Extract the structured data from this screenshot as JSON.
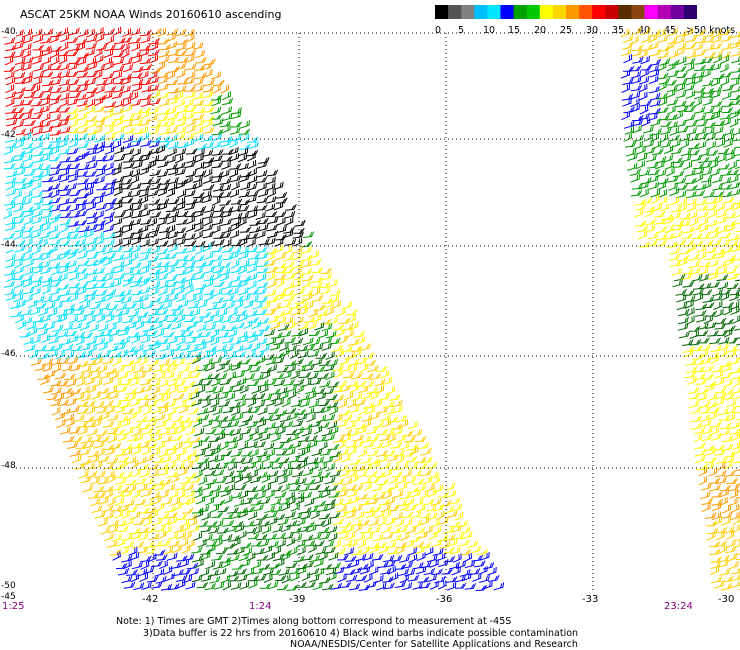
{
  "title": "ASCAT 25KM NOAA Winds 20160610 ascending",
  "colorbar": {
    "colors": [
      "#000000",
      "#555555",
      "#808080",
      "#00bfff",
      "#00e5ff",
      "#0000ff",
      "#00a000",
      "#00c800",
      "#ffff00",
      "#ffd700",
      "#ff9900",
      "#ff5500",
      "#ff0000",
      "#c80000",
      "#5a2d00",
      "#8b4513",
      "#ff00ff",
      "#b400b4",
      "#7000a0",
      "#300070"
    ],
    "labels": [
      "0",
      "5",
      "10",
      "15",
      "20",
      "25",
      "30",
      "35",
      "40",
      "45",
      ">50 knots"
    ]
  },
  "map": {
    "lat_labels": [
      "-40",
      "-42",
      "-44",
      "-46",
      "-48",
      "-50"
    ],
    "lon_labels": [
      "-42",
      "-39",
      "-36",
      "-33",
      "-30"
    ],
    "corner_label": "-45",
    "times": [
      "1:25",
      "1:24",
      "23:24"
    ],
    "grid": true,
    "wind_colors": {
      "black": "#000000",
      "cyan": "#00e0ff",
      "blue": "#0000ff",
      "green": "#009900",
      "dark_green": "#006600",
      "yellow": "#ffff00",
      "gold": "#ffcc00",
      "orange": "#ff9900",
      "red": "#ff0000"
    }
  },
  "notes": [
    "Note: 1) Times are GMT 2)Times along bottom correspond to measurement at -45S",
    "3)Data buffer is 22 hrs from 20160610 4) Black wind barbs indicate possible contamination",
    "NOAA/NESDIS/Center for Satellite Applications and Research"
  ]
}
